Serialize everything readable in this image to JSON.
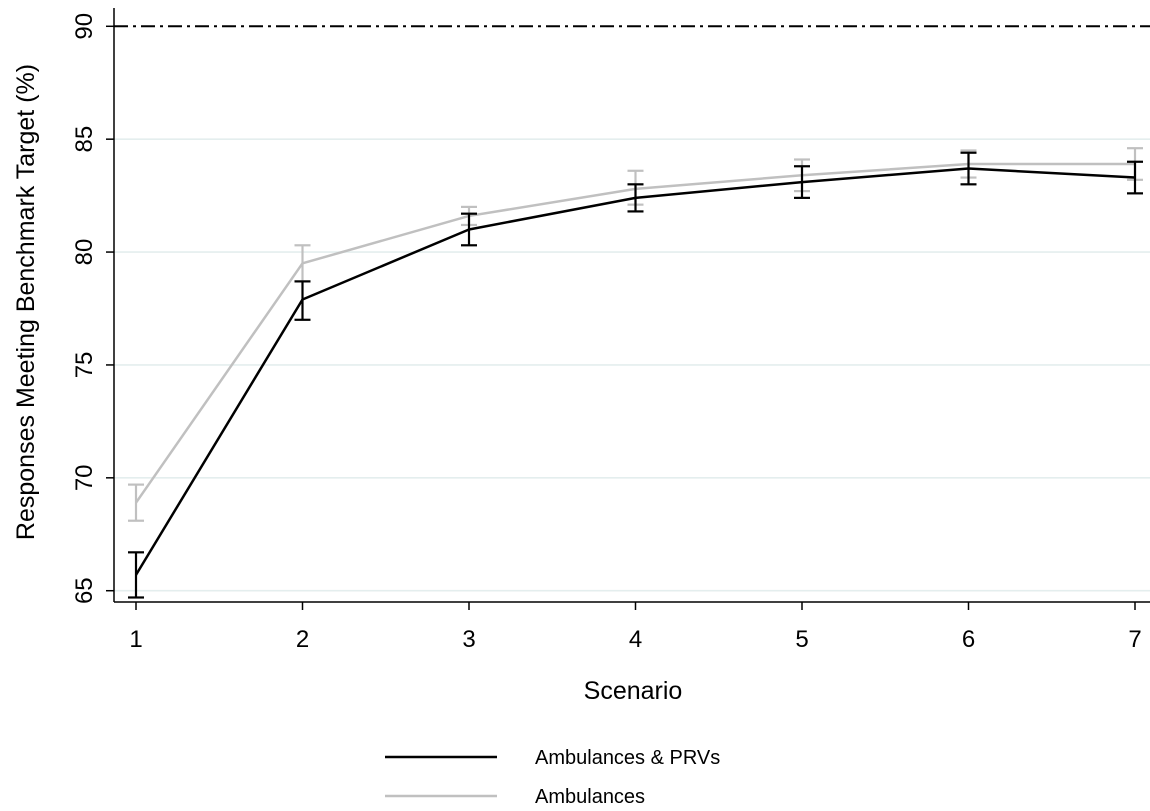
{
  "chart_data": {
    "type": "line",
    "title": "",
    "xlabel": "Scenario",
    "ylabel": "Responses Meeting Benchmark Target (%)",
    "x": [
      1,
      2,
      3,
      4,
      5,
      6,
      7
    ],
    "xlim": [
      1,
      7
    ],
    "ylim": [
      64.5,
      90.5
    ],
    "yticks": [
      65,
      70,
      75,
      80,
      85,
      90
    ],
    "grid": true,
    "reference_line": {
      "y": 90,
      "style": "dash-dot"
    },
    "legend_position": "bottom",
    "series": [
      {
        "name": "Ambulances & PRVs",
        "color": "#000000",
        "values": [
          65.7,
          77.9,
          81.0,
          82.4,
          83.1,
          83.7,
          83.3
        ],
        "error_low": [
          64.7,
          77.0,
          80.3,
          81.8,
          82.4,
          83.0,
          82.6
        ],
        "error_high": [
          66.7,
          78.7,
          81.7,
          83.0,
          83.8,
          84.4,
          84.0
        ]
      },
      {
        "name": "Ambulances",
        "color": "#c0c0c0",
        "values": [
          68.9,
          79.5,
          81.6,
          82.8,
          83.4,
          83.9,
          83.9
        ],
        "error_low": [
          68.1,
          78.7,
          81.2,
          82.1,
          82.7,
          83.3,
          83.2
        ],
        "error_high": [
          69.7,
          80.3,
          82.0,
          83.6,
          84.1,
          84.5,
          84.6
        ]
      }
    ]
  }
}
